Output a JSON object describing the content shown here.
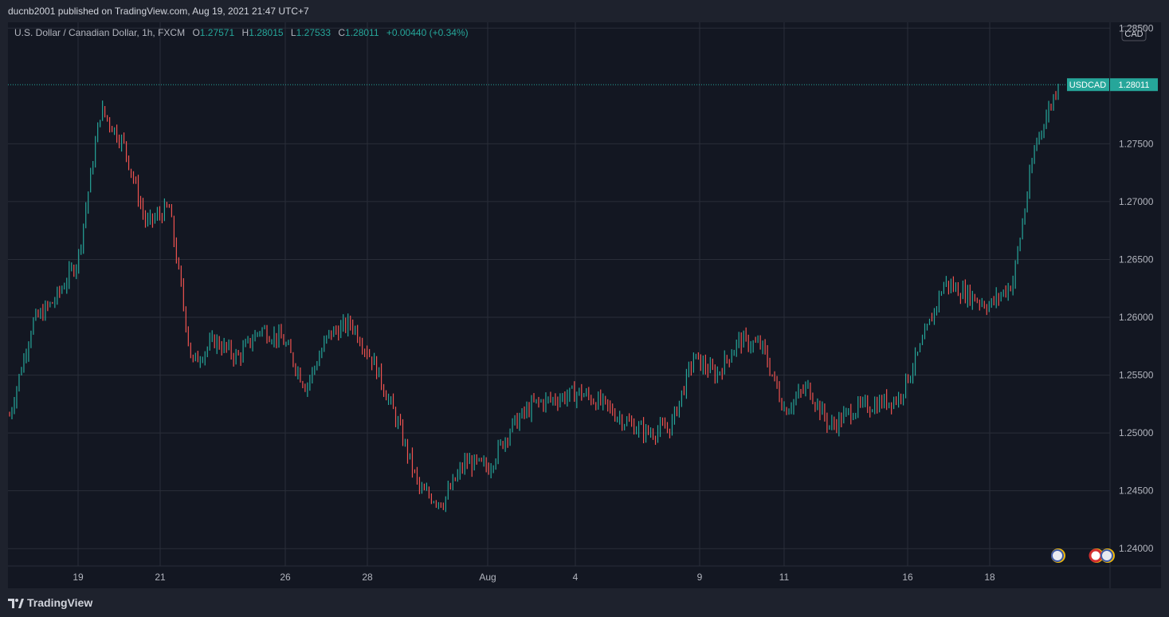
{
  "header": {
    "published_by": "ducnb2001 published on TradingView.com, Aug 19, 2021 21:47 UTC+7"
  },
  "legend": {
    "symbol": "U.S. Dollar / Canadian Dollar, 1h, FXCM",
    "o_label": "O",
    "o_value": "1.27571",
    "h_label": "H",
    "h_value": "1.28015",
    "l_label": "L",
    "l_value": "1.27533",
    "c_label": "C",
    "c_value": "1.28011",
    "change": "+0.00440 (+0.34%)"
  },
  "price_axis": {
    "currency": "CAD",
    "labels": [
      "1.28500",
      "1.27500",
      "1.27000",
      "1.26500",
      "1.26000",
      "1.25500",
      "1.25000",
      "1.24500",
      "1.24000"
    ]
  },
  "price_tag": {
    "symbol": "USDCAD",
    "value": "1.28011"
  },
  "time_axis": {
    "labels": [
      "19",
      "21",
      "26",
      "28",
      "Aug",
      "4",
      "9",
      "11",
      "16",
      "18"
    ]
  },
  "footer": {
    "brand": "TradingView"
  },
  "colors": {
    "up": "#26a69a",
    "down": "#ef5350",
    "background": "#131722",
    "grid": "#2a2e39",
    "text": "#b2b5be"
  },
  "chart_data": {
    "type": "line",
    "title": "U.S. Dollar / Canadian Dollar, 1h, FXCM",
    "x_label": "",
    "y_label": "",
    "ylim": [
      1.2385,
      1.2855
    ],
    "series": [
      {
        "name": "USDCAD",
        "x": [
          "Jul 16",
          "Jul 17",
          "Jul 19",
          "Jul 19",
          "Jul 20",
          "Jul 20",
          "Jul 21",
          "Jul 21",
          "Jul 22",
          "Jul 22",
          "Jul 23",
          "Jul 26",
          "Jul 26",
          "Jul 27",
          "Jul 27",
          "Jul 28",
          "Jul 28",
          "Jul 29",
          "Jul 29",
          "Jul 30",
          "Jul 30",
          "Aug 2",
          "Aug 2",
          "Aug 3",
          "Aug 3",
          "Aug 4",
          "Aug 5",
          "Aug 5",
          "Aug 6",
          "Aug 6",
          "Aug 9",
          "Aug 9",
          "Aug 10",
          "Aug 10",
          "Aug 11",
          "Aug 11",
          "Aug 12",
          "Aug 12",
          "Aug 13",
          "Aug 16",
          "Aug 16",
          "Aug 17",
          "Aug 17",
          "Aug 18",
          "Aug 18",
          "Aug 19",
          "Aug 19"
        ],
        "y": [
          1.2515,
          1.2595,
          1.2615,
          1.265,
          1.278,
          1.275,
          1.268,
          1.2695,
          1.256,
          1.258,
          1.2565,
          1.259,
          1.258,
          1.254,
          1.2585,
          1.2595,
          1.256,
          1.251,
          1.245,
          1.244,
          1.2475,
          1.247,
          1.2505,
          1.2525,
          1.253,
          1.2535,
          1.2525,
          1.251,
          1.25,
          1.2505,
          1.2565,
          1.255,
          1.258,
          1.2575,
          1.252,
          1.254,
          1.2505,
          1.252,
          1.2525,
          1.253,
          1.2575,
          1.263,
          1.262,
          1.261,
          1.263,
          1.275,
          1.2801
        ]
      }
    ]
  }
}
